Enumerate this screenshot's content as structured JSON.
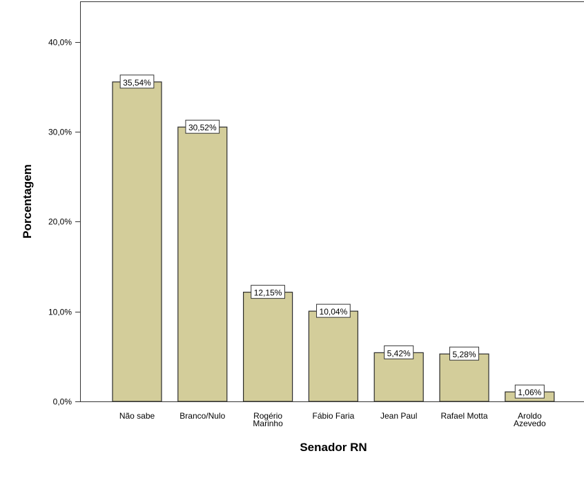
{
  "chart_data": {
    "type": "bar",
    "title": "",
    "xlabel": "Senador RN",
    "ylabel": "Porcentagem",
    "categories": [
      [
        "Não sabe"
      ],
      [
        "Branco/Nulo"
      ],
      [
        "Rogério",
        "Marinho"
      ],
      [
        "Fábio Faria"
      ],
      [
        "Jean Paul"
      ],
      [
        "Rafael Motta"
      ],
      [
        "Aroldo",
        "Azevedo"
      ]
    ],
    "values": [
      35.54,
      30.52,
      12.15,
      10.04,
      5.42,
      5.28,
      1.06
    ],
    "data_labels": [
      "35,54%",
      "30,52%",
      "12,15%",
      "10,04%",
      "5,42%",
      "5,28%",
      "1,06%"
    ],
    "yticks": [
      0,
      10,
      20,
      30,
      40
    ],
    "ytick_labels": [
      "0,0%",
      "10,0%",
      "20,0%",
      "30,0%",
      "40,0%"
    ],
    "ylim": [
      0,
      44.5
    ],
    "grid": false,
    "colors": {
      "bar_fill": "#d3cd9a",
      "bar_stroke": "#2b2b2b",
      "axis": "#333333",
      "label_box_fill": "#ffffff",
      "label_box_stroke": "#333333"
    }
  }
}
